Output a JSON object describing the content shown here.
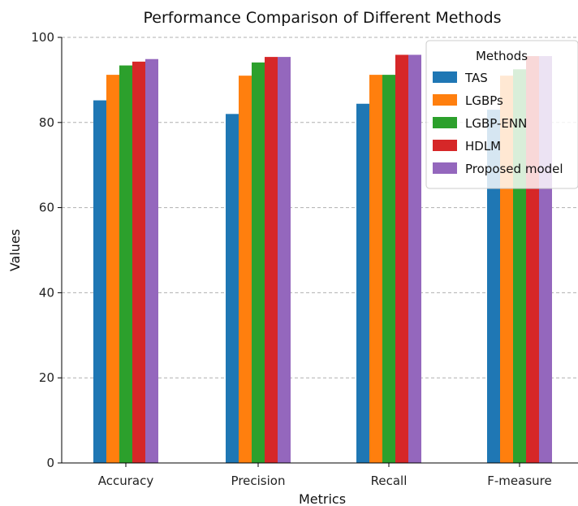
{
  "chart_data": {
    "type": "bar",
    "title": "Performance Comparison of Different Methods",
    "xlabel": "Metrics",
    "ylabel": "Values",
    "categories": [
      "Accuracy",
      "Precision",
      "Recall",
      "F-measure"
    ],
    "ylim": [
      0,
      100
    ],
    "yticks": [
      0,
      20,
      40,
      60,
      80,
      100
    ],
    "grid": "horizontal dashed",
    "legend": {
      "title": "Methods",
      "placement": "top-right"
    },
    "series": [
      {
        "name": "TAS",
        "color": "#1f77b4",
        "values": [
          85.2,
          82.0,
          84.4,
          83.0
        ]
      },
      {
        "name": "LGBPs",
        "color": "#ff7f0e",
        "values": [
          91.2,
          91.0,
          91.2,
          91.0
        ]
      },
      {
        "name": "LGBP-ENN",
        "color": "#2ca02c",
        "values": [
          93.4,
          94.1,
          91.2,
          92.5
        ]
      },
      {
        "name": "HDLM",
        "color": "#d62728",
        "values": [
          94.3,
          95.4,
          95.9,
          95.6
        ]
      },
      {
        "name": "Proposed model",
        "color": "#9467bd",
        "values": [
          94.9,
          95.4,
          95.9,
          95.6
        ]
      }
    ]
  }
}
